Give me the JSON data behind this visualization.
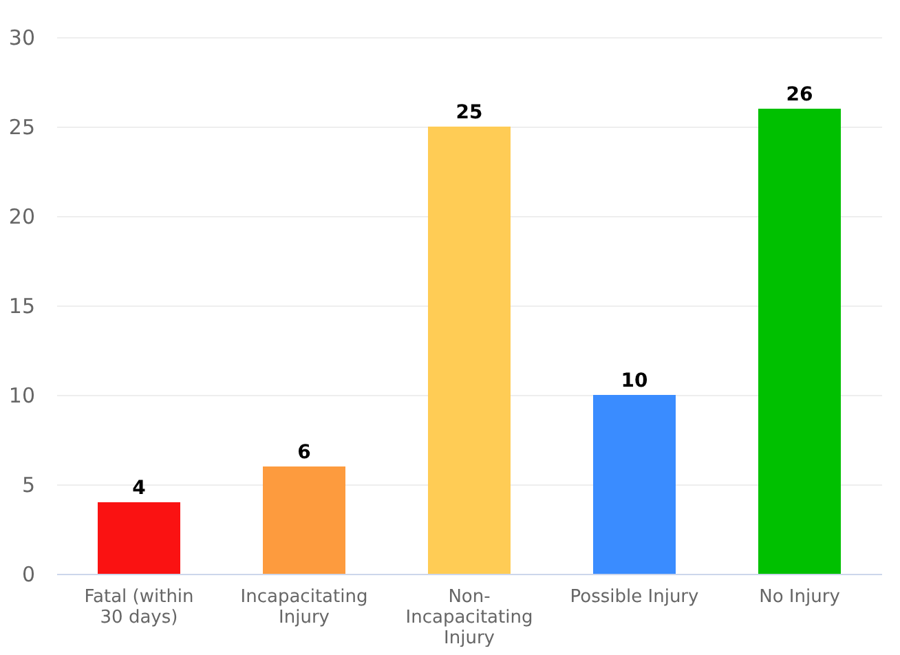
{
  "chart_data": {
    "type": "bar",
    "categories": [
      "Fatal (within 30 days)",
      "Incapacitating Injury",
      "Non-Incapacitating Injury",
      "Possible Injury",
      "No Injury"
    ],
    "values": [
      4,
      6,
      25,
      10,
      26
    ],
    "colors": [
      "#fa1212",
      "#fd9b3e",
      "#ffcc55",
      "#3a8cff",
      "#00c000"
    ],
    "ylim": [
      0,
      30
    ],
    "yticks": [
      0,
      5,
      10,
      15,
      20,
      25,
      30
    ],
    "grid": "y",
    "data_labels": true
  }
}
